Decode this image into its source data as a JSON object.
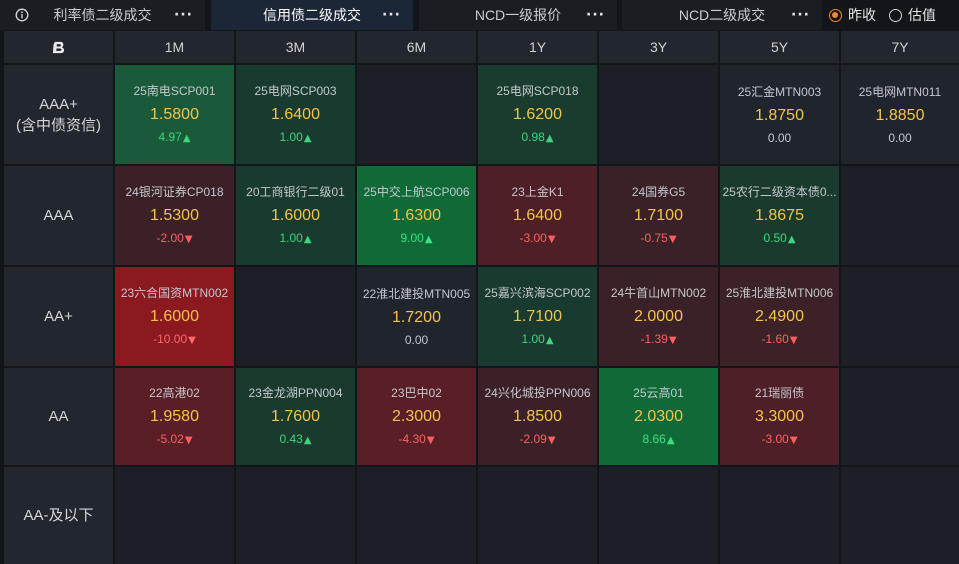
{
  "tabs": [
    {
      "label": "利率债二级成交",
      "more": "···",
      "active": false
    },
    {
      "label": "信用债二级成交",
      "more": "···",
      "active": true
    },
    {
      "label": "NCD一级报价",
      "more": "···",
      "active": false
    },
    {
      "label": "NCD二级成交",
      "more": "···",
      "active": false
    }
  ],
  "icons": {
    "info": "info-circle-icon",
    "logo": "brand-b-logo-icon",
    "up": "up-triangle-icon",
    "down": "down-triangle-icon"
  },
  "price_basis": {
    "options": [
      {
        "label": "昨收",
        "selected": true
      },
      {
        "label": "估值",
        "selected": false
      }
    ]
  },
  "colors": {
    "background": "#121519",
    "accent": "#f08a2c",
    "active_tab": "#1b2637",
    "yield": "#f3c44b",
    "up": "#3dd67c",
    "down": "#ff5f5f",
    "flat": "#c4c8ce"
  },
  "grid": {
    "tenors": [
      "1M",
      "3M",
      "6M",
      "1Y",
      "3Y",
      "5Y",
      "7Y"
    ],
    "rows": [
      {
        "rating": "AAA+",
        "rating_note": "(含中债资信)",
        "cells": [
          {
            "name": "25南电SCP001",
            "yield": "1.5800",
            "change": "4.97",
            "arrow": "▲",
            "bg": "#1a5a3a",
            "change_color": "#3dd67c"
          },
          {
            "name": "25电网SCP003",
            "yield": "1.6400",
            "change": "1.00",
            "arrow": "▲",
            "bg": "#193a2e",
            "change_color": "#3dd67c"
          },
          null,
          {
            "name": "25电网SCP018",
            "yield": "1.6200",
            "change": "0.98",
            "arrow": "▲",
            "bg": "#1a3c2f",
            "change_color": "#3dd67c"
          },
          null,
          {
            "name": "25汇金MTN003",
            "yield": "1.8750",
            "change": "0.00",
            "arrow": "",
            "bg": "#20252c",
            "change_color": "#c4c8ce"
          },
          {
            "name": "25电网MTN011",
            "yield": "1.8850",
            "change": "0.00",
            "arrow": "",
            "bg": "#20252c",
            "change_color": "#c4c8ce"
          }
        ]
      },
      {
        "rating": "AAA",
        "rating_note": "",
        "cells": [
          {
            "name": "24银河证券CP018",
            "yield": "1.5300",
            "change": "-2.00",
            "arrow": "▼",
            "bg": "#3b2127",
            "change_color": "#ff5f5f"
          },
          {
            "name": "20工商银行二级01",
            "yield": "1.6000",
            "change": "1.00",
            "arrow": "▲",
            "bg": "#193a2e",
            "change_color": "#3dd67c"
          },
          {
            "name": "25中交上航SCP006",
            "yield": "1.6300",
            "change": "9.00",
            "arrow": "▲",
            "bg": "#0f6a38",
            "change_color": "#3ee07f"
          },
          {
            "name": "23上金K1",
            "yield": "1.6400",
            "change": "-3.00",
            "arrow": "▼",
            "bg": "#4f1f27",
            "change_color": "#ff5f5f"
          },
          {
            "name": "24国券G5",
            "yield": "1.7100",
            "change": "-0.75",
            "arrow": "▼",
            "bg": "#3a2127",
            "change_color": "#ff5f5f"
          },
          {
            "name": "25农行二级资本债0...",
            "yield": "1.8675",
            "change": "0.50",
            "arrow": "▲",
            "bg": "#1a3a2e",
            "change_color": "#3dd67c"
          },
          null
        ]
      },
      {
        "rating": "AA+",
        "rating_note": "",
        "cells": [
          {
            "name": "23六合国资MTN002",
            "yield": "1.6000",
            "change": "-10.00",
            "arrow": "▼",
            "bg": "#8c1820",
            "change_color": "#ff6a6a"
          },
          null,
          {
            "name": "22淮北建投MTN005",
            "yield": "1.7200",
            "change": "0.00",
            "arrow": "",
            "bg": "#20252c",
            "change_color": "#c4c8ce"
          },
          {
            "name": "25嘉兴滨海SCP002",
            "yield": "1.7100",
            "change": "1.00",
            "arrow": "▲",
            "bg": "#193a2e",
            "change_color": "#3dd67c"
          },
          {
            "name": "24牛首山MTN002",
            "yield": "2.0000",
            "change": "-1.39",
            "arrow": "▼",
            "bg": "#3a2127",
            "change_color": "#ff5f5f"
          },
          {
            "name": "25淮北建投MTN006",
            "yield": "2.4900",
            "change": "-1.60",
            "arrow": "▼",
            "bg": "#3c2127",
            "change_color": "#ff5f5f"
          },
          null
        ]
      },
      {
        "rating": "AA",
        "rating_note": "",
        "cells": [
          {
            "name": "22高港02",
            "yield": "1.9580",
            "change": "-5.02",
            "arrow": "▼",
            "bg": "#5a1e27",
            "change_color": "#ff5f5f"
          },
          {
            "name": "23金龙湖PPN004",
            "yield": "1.7600",
            "change": "0.43",
            "arrow": "▲",
            "bg": "#1a3a2e",
            "change_color": "#3dd67c"
          },
          {
            "name": "23巴中02",
            "yield": "2.3000",
            "change": "-4.30",
            "arrow": "▼",
            "bg": "#5a1e27",
            "change_color": "#ff5f5f"
          },
          {
            "name": "24兴化城投PPN006",
            "yield": "1.8500",
            "change": "-2.09",
            "arrow": "▼",
            "bg": "#3b2127",
            "change_color": "#ff5f5f"
          },
          {
            "name": "25云高01",
            "yield": "2.0300",
            "change": "8.66",
            "arrow": "▲",
            "bg": "#0f6a38",
            "change_color": "#3ee07f"
          },
          {
            "name": "21瑞丽债",
            "yield": "3.3000",
            "change": "-3.00",
            "arrow": "▼",
            "bg": "#4f1f27",
            "change_color": "#ff5f5f"
          },
          null
        ]
      },
      {
        "rating": "AA-及以下",
        "rating_note": "",
        "cells": [
          null,
          null,
          null,
          null,
          null,
          null,
          null
        ]
      }
    ]
  }
}
